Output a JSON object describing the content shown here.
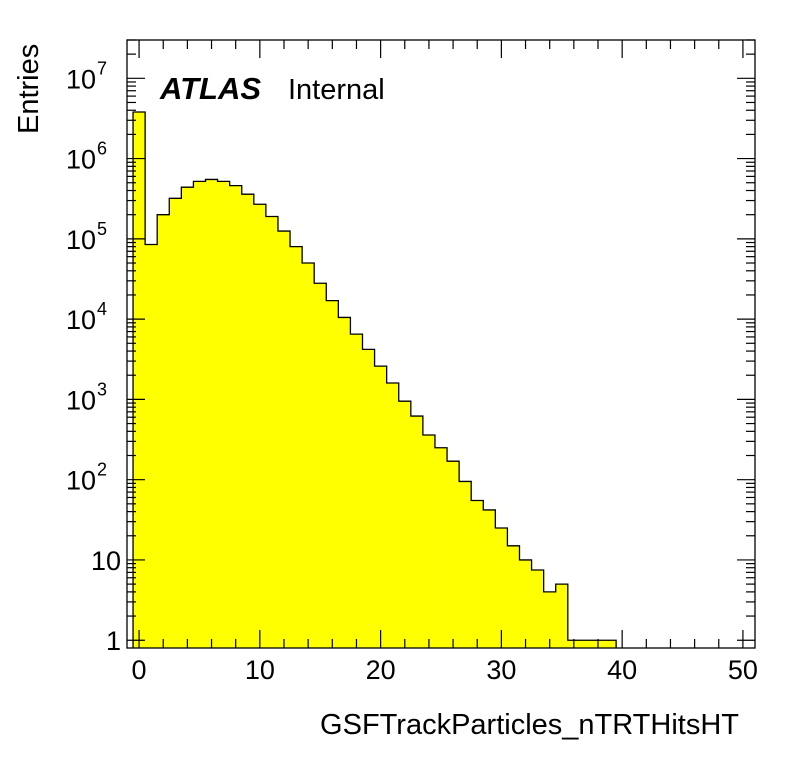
{
  "chart_data": {
    "type": "histogram",
    "xlabel": "GSFTrackParticles_nTRTHitsHT",
    "ylabel": "Entries",
    "xlim": [
      -1,
      51
    ],
    "ylim": [
      0.8,
      30000000
    ],
    "yscale": "log",
    "grid": false,
    "bar_color": "#ffff00",
    "x_ticks": [
      0,
      10,
      20,
      30,
      40,
      50
    ],
    "y_ticks": [
      {
        "value": 1,
        "base": "1",
        "exp": ""
      },
      {
        "value": 10,
        "base": "10",
        "exp": ""
      },
      {
        "value": 100,
        "base": "10",
        "exp": "2"
      },
      {
        "value": 1000,
        "base": "10",
        "exp": "3"
      },
      {
        "value": 10000,
        "base": "10",
        "exp": "4"
      },
      {
        "value": 100000,
        "base": "10",
        "exp": "5"
      },
      {
        "value": 1000000,
        "base": "10",
        "exp": "6"
      },
      {
        "value": 10000000,
        "base": "10",
        "exp": "7"
      }
    ],
    "bin_edges": [
      -0.5,
      0.5,
      1.5,
      2.5,
      3.5,
      4.5,
      5.5,
      6.5,
      7.5,
      8.5,
      9.5,
      10.5,
      11.5,
      12.5,
      13.5,
      14.5,
      15.5,
      16.5,
      17.5,
      18.5,
      19.5,
      20.5,
      21.5,
      22.5,
      23.5,
      24.5,
      25.5,
      26.5,
      27.5,
      28.5,
      29.5,
      30.5,
      31.5,
      32.5,
      33.5,
      34.5,
      35.5,
      36.5,
      37.5,
      38.5,
      39.5
    ],
    "values": [
      3800000,
      85000,
      200000,
      320000,
      440000,
      520000,
      550000,
      520000,
      460000,
      360000,
      270000,
      190000,
      125000,
      80000,
      50000,
      28000,
      17000,
      10500,
      6500,
      4200,
      2600,
      1600,
      950,
      620,
      360,
      250,
      170,
      95,
      55,
      42,
      25,
      15,
      10,
      7.5,
      4,
      5,
      1,
      1,
      1,
      1
    ]
  },
  "label": {
    "atlas": "ATLAS",
    "internal": "Internal"
  }
}
